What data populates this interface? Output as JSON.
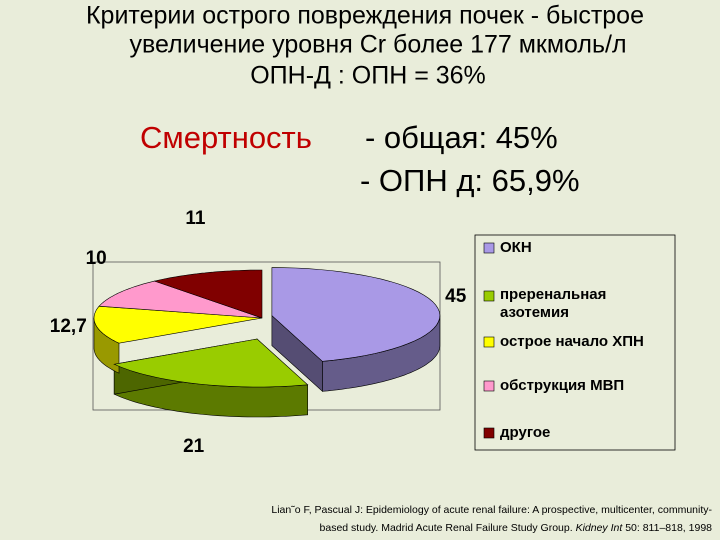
{
  "slide": {
    "title_lines": [
      "Критерии острого повреждения почек - быстрое",
      "увеличение уровня Cr более 177 мкмоль/л",
      "ОПН-Д : ОПН = 36%"
    ],
    "mortality_label": "Смертность",
    "mortality_lines": [
      "- общая:  45%",
      "- ОПН д: 65,9%"
    ],
    "citation": {
      "text1": "Lian˜o F, Pascual J: Epidemiology of acute renal failure: A prospective, multicenter, community-",
      "text2": "based study. Madrid Acute Renal Failure Study Group.",
      "journal": "Kidney Int",
      "text3": "50: 811–818, 1998"
    }
  },
  "chart_data": {
    "type": "pie",
    "categories": [
      "ОКН",
      "преренальная азотемия",
      "острое начало ХПН",
      "обструкция МВП",
      "другое"
    ],
    "values": [
      45,
      21,
      12.7,
      10,
      11
    ],
    "value_labels": [
      "45",
      "21",
      "12,7",
      "10",
      "11"
    ],
    "colors": [
      "#a999e6",
      "#99cc00",
      "#ffff00",
      "#ff99cc",
      "#800000"
    ],
    "legend": "right"
  }
}
